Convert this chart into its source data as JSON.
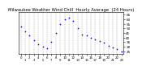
{
  "title": "Milwaukee Weather Wind Chill  Hourly Average  (24 Hours)",
  "title_fontsize": 3.8,
  "dot_color": "blue",
  "dot_size": 1.5,
  "background_color": "#ffffff",
  "x_values": [
    0,
    1,
    2,
    3,
    4,
    5,
    6,
    7,
    8,
    9,
    10,
    11,
    12,
    13,
    14,
    15,
    16,
    17,
    18,
    19,
    20,
    21,
    22,
    23
  ],
  "y_values": [
    52,
    47,
    42,
    37,
    33,
    30,
    28,
    35,
    45,
    55,
    60,
    62,
    58,
    50,
    43,
    42,
    40,
    38,
    36,
    34,
    31,
    29,
    27,
    25
  ],
  "ylim": [
    22,
    68
  ],
  "xlim": [
    -0.5,
    23.5
  ],
  "ytick_values": [
    25,
    30,
    35,
    40,
    45,
    50,
    55,
    60,
    65
  ],
  "ytick_fontsize": 3.0,
  "xtick_fontsize": 2.8,
  "xtick_values": [
    0,
    1,
    2,
    3,
    4,
    5,
    6,
    7,
    8,
    9,
    10,
    11,
    12,
    13,
    14,
    15,
    16,
    17,
    18,
    19,
    20,
    21,
    22,
    23
  ],
  "xtick_labels_row1": [
    "0",
    "1",
    "2",
    "3",
    "4",
    "5",
    "6",
    "7",
    "8",
    "9",
    "10",
    "11",
    "12",
    "13",
    "14",
    "15",
    "16",
    "17",
    "18",
    "19",
    "20",
    "21",
    "22",
    "23"
  ],
  "grid_color": "#888888",
  "grid_style": "--",
  "grid_linewidth": 0.35
}
